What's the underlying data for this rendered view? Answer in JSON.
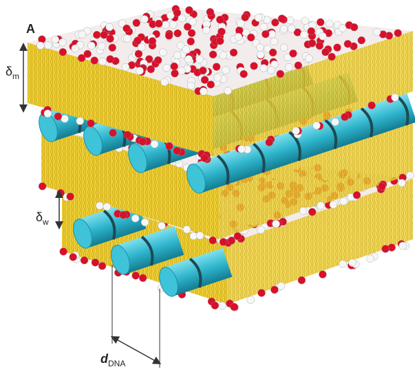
{
  "panel_label": "A",
  "annotations": [
    {
      "symbol": "δ",
      "subscript": "m"
    },
    {
      "symbol": "δ",
      "subscript": "w"
    },
    {
      "symbol": "d",
      "subscript": "DNA"
    }
  ]
}
